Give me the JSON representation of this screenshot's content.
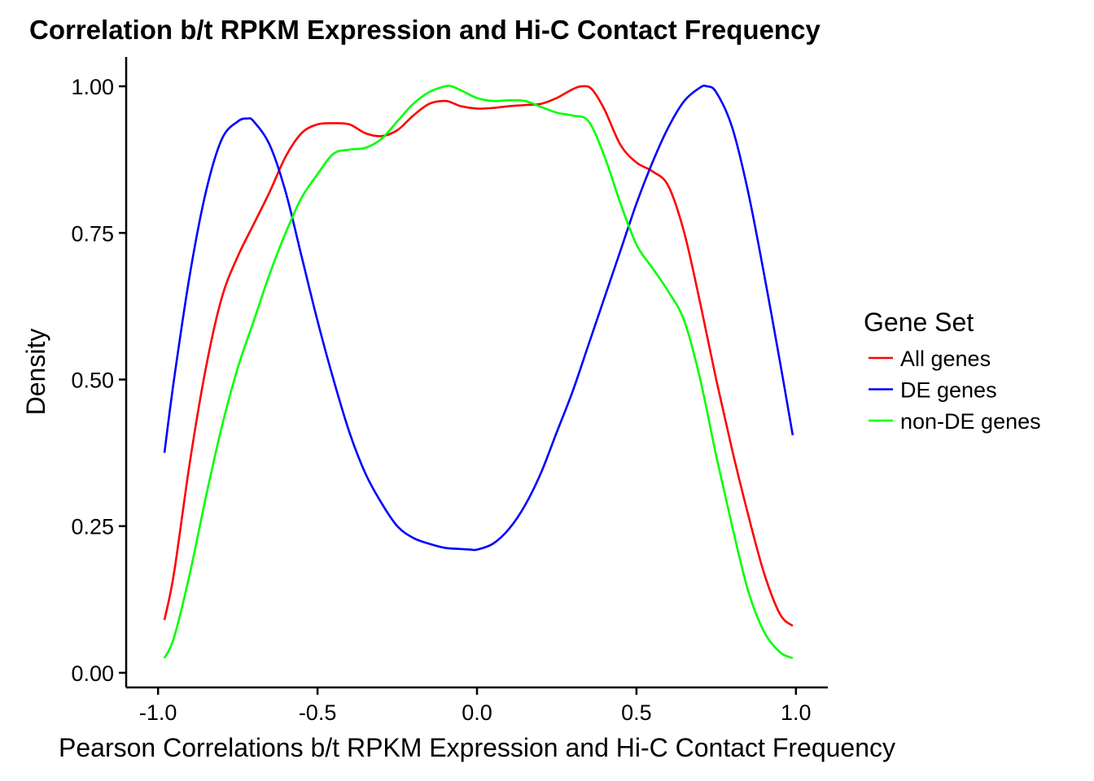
{
  "chart_data": {
    "type": "line",
    "title": "Correlation b/t RPKM Expression and Hi-C Contact Frequency",
    "xlabel": "Pearson Correlations b/t RPKM Expression and Hi-C Contact Frequency",
    "ylabel": "Density",
    "xlim": [
      -1.1,
      1.1
    ],
    "ylim": [
      -0.025,
      1.05
    ],
    "x_ticks": [
      {
        "value": -1.0,
        "label": "-1.0"
      },
      {
        "value": -0.5,
        "label": "-0.5"
      },
      {
        "value": 0.0,
        "label": "0.0"
      },
      {
        "value": 0.5,
        "label": "0.5"
      },
      {
        "value": 1.0,
        "label": "1.0"
      }
    ],
    "y_ticks": [
      {
        "value": 0.0,
        "label": "0.00"
      },
      {
        "value": 0.25,
        "label": "0.25"
      },
      {
        "value": 0.5,
        "label": "0.50"
      },
      {
        "value": 0.75,
        "label": "0.75"
      },
      {
        "value": 1.0,
        "label": "1.00"
      }
    ],
    "grid": false,
    "legend": {
      "title": "Gene Set",
      "position": "right"
    },
    "series": [
      {
        "name": "All genes",
        "color": "#FF0000",
        "x": [
          -0.98,
          -0.95,
          -0.9,
          -0.85,
          -0.8,
          -0.75,
          -0.7,
          -0.65,
          -0.6,
          -0.55,
          -0.5,
          -0.45,
          -0.4,
          -0.35,
          -0.3,
          -0.25,
          -0.2,
          -0.15,
          -0.1,
          -0.07,
          -0.05,
          0.0,
          0.05,
          0.1,
          0.15,
          0.2,
          0.25,
          0.3,
          0.33,
          0.36,
          0.4,
          0.45,
          0.5,
          0.55,
          0.6,
          0.65,
          0.7,
          0.75,
          0.8,
          0.85,
          0.9,
          0.95,
          0.99
        ],
        "y": [
          0.09,
          0.17,
          0.36,
          0.52,
          0.64,
          0.71,
          0.765,
          0.82,
          0.88,
          0.92,
          0.935,
          0.937,
          0.935,
          0.92,
          0.915,
          0.925,
          0.95,
          0.97,
          0.975,
          0.97,
          0.966,
          0.962,
          0.963,
          0.966,
          0.968,
          0.97,
          0.98,
          0.995,
          1.0,
          0.995,
          0.96,
          0.9,
          0.87,
          0.855,
          0.83,
          0.75,
          0.63,
          0.5,
          0.38,
          0.27,
          0.17,
          0.1,
          0.08
        ]
      },
      {
        "name": "DE genes",
        "color": "#0000FF",
        "x": [
          -0.98,
          -0.95,
          -0.9,
          -0.85,
          -0.8,
          -0.75,
          -0.72,
          -0.7,
          -0.65,
          -0.6,
          -0.55,
          -0.5,
          -0.45,
          -0.4,
          -0.35,
          -0.3,
          -0.25,
          -0.2,
          -0.15,
          -0.1,
          -0.05,
          -0.02,
          0.0,
          0.05,
          0.1,
          0.15,
          0.2,
          0.25,
          0.3,
          0.35,
          0.4,
          0.45,
          0.5,
          0.55,
          0.6,
          0.65,
          0.7,
          0.72,
          0.75,
          0.8,
          0.85,
          0.9,
          0.95,
          0.99
        ],
        "y": [
          0.375,
          0.5,
          0.68,
          0.82,
          0.91,
          0.94,
          0.945,
          0.94,
          0.9,
          0.82,
          0.71,
          0.6,
          0.5,
          0.41,
          0.34,
          0.29,
          0.25,
          0.23,
          0.22,
          0.213,
          0.211,
          0.21,
          0.21,
          0.22,
          0.245,
          0.285,
          0.34,
          0.41,
          0.48,
          0.56,
          0.64,
          0.72,
          0.8,
          0.87,
          0.93,
          0.975,
          0.998,
          1.0,
          0.99,
          0.93,
          0.82,
          0.68,
          0.53,
          0.405
        ]
      },
      {
        "name": "non-DE genes",
        "color": "#00FF00",
        "x": [
          -0.98,
          -0.95,
          -0.9,
          -0.85,
          -0.8,
          -0.75,
          -0.7,
          -0.65,
          -0.6,
          -0.55,
          -0.5,
          -0.45,
          -0.4,
          -0.35,
          -0.3,
          -0.25,
          -0.2,
          -0.15,
          -0.1,
          -0.08,
          -0.05,
          0.0,
          0.05,
          0.1,
          0.15,
          0.2,
          0.25,
          0.3,
          0.35,
          0.4,
          0.45,
          0.5,
          0.55,
          0.6,
          0.65,
          0.7,
          0.75,
          0.8,
          0.85,
          0.9,
          0.95,
          0.99
        ],
        "y": [
          0.025,
          0.06,
          0.17,
          0.3,
          0.42,
          0.52,
          0.6,
          0.68,
          0.75,
          0.81,
          0.85,
          0.885,
          0.892,
          0.895,
          0.91,
          0.94,
          0.97,
          0.99,
          1.0,
          1.0,
          0.993,
          0.98,
          0.975,
          0.976,
          0.975,
          0.965,
          0.955,
          0.95,
          0.94,
          0.88,
          0.8,
          0.73,
          0.69,
          0.65,
          0.6,
          0.5,
          0.37,
          0.25,
          0.14,
          0.07,
          0.035,
          0.025
        ]
      }
    ]
  }
}
